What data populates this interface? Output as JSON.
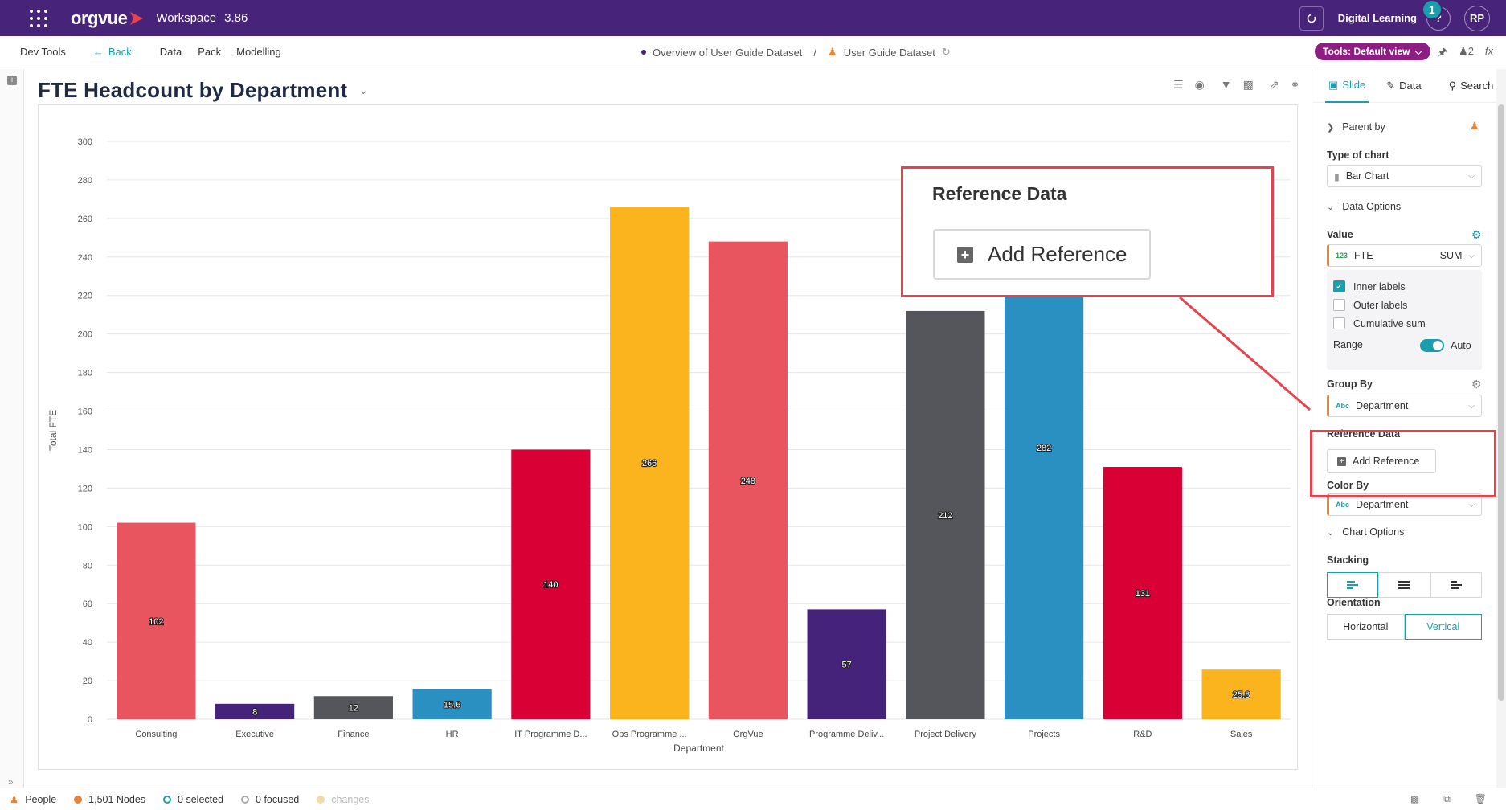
{
  "topbar": {
    "product": "orgvue",
    "workspace_label": "Workspace",
    "version": "3.86",
    "digital_learning": "Digital Learning",
    "notification_count": "1",
    "help": "?",
    "user_initials": "RP"
  },
  "menubar": {
    "dev_tools": "Dev Tools",
    "back": "Back",
    "data": "Data",
    "pack": "Pack",
    "modelling": "Modelling",
    "crumb_1": "Overview of User Guide Dataset",
    "separator": "/",
    "crumb_2": "User Guide Dataset",
    "tools_view": "Tools: Default view",
    "user_count": "2",
    "fx": "fx"
  },
  "slide": {
    "title": "FTE Headcount by Department"
  },
  "callout": {
    "title": "Reference Data",
    "button": "Add Reference"
  },
  "panel": {
    "tabs": [
      "Slide",
      "Data",
      "Search"
    ],
    "parent_by": "Parent by",
    "type_of_chart_label": "Type of chart",
    "type_of_chart_value": "Bar Chart",
    "data_options": "Data Options",
    "value_label": "Value",
    "value_type": "123",
    "value_field": "FTE",
    "value_agg": "SUM",
    "inner_labels": "Inner labels",
    "outer_labels": "Outer labels",
    "cumulative_sum": "Cumulative sum",
    "range_label": "Range",
    "range_value": "Auto",
    "group_by_label": "Group By",
    "group_by_type": "Abc",
    "group_by_value": "Department",
    "reference_data_label": "Reference Data",
    "add_reference": "Add Reference",
    "color_by_label": "Color By",
    "color_by_type": "Abc",
    "color_by_value": "Department",
    "chart_options": "Chart Options",
    "stacking_label": "Stacking",
    "orientation_label": "Orientation",
    "orientation_horizontal": "Horizontal",
    "orientation_vertical": "Vertical"
  },
  "statusbar": {
    "people": "People",
    "nodes": "1,501 Nodes",
    "selected": "0 selected",
    "focused": "0 focused",
    "changes": "changes"
  },
  "chart_data": {
    "type": "bar",
    "xlabel": "Department",
    "ylabel": "Total FTE",
    "ylim": [
      0,
      300
    ],
    "ytick_step": 20,
    "grid": true,
    "categories": [
      "Consulting",
      "Executive",
      "Finance",
      "HR",
      "IT Programme D...",
      "Ops Programme ...",
      "OrgVue",
      "Programme Deliv...",
      "Project Delivery",
      "Projects",
      "R&D",
      "Sales"
    ],
    "values": [
      102,
      8,
      12,
      15.6,
      140,
      266,
      248,
      57,
      212,
      282,
      131,
      25.8
    ],
    "labels": [
      "102",
      "8",
      "12",
      "15.6",
      "140",
      "266",
      "248",
      "57",
      "212",
      "282",
      "131",
      "25.8"
    ],
    "colors": [
      "#e8555e",
      "#45237a",
      "#54565b",
      "#2a8fc1",
      "#d80034",
      "#fbb41e",
      "#e8555e",
      "#45237a",
      "#54565b",
      "#2a8fc1",
      "#d80034",
      "#fbb41e"
    ]
  }
}
